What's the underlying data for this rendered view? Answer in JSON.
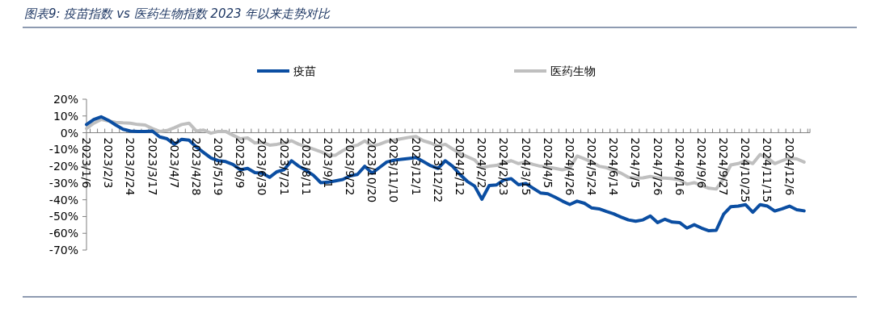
{
  "chart_data": {
    "type": "line",
    "title": "图表9: 疫苗指数 vs 医药生物指数 2023 年以来走势对比",
    "categories": [
      "2023/1/6",
      null,
      null,
      "2023/2/3",
      null,
      null,
      "2023/2/24",
      null,
      null,
      "2023/3/17",
      null,
      null,
      "2023/4/7",
      null,
      null,
      "2023/4/28",
      null,
      null,
      "2023/5/19",
      null,
      null,
      "2023/6/9",
      null,
      null,
      "2023/6/30",
      null,
      null,
      "2023/7/21",
      null,
      null,
      "2023/8/11",
      null,
      null,
      "2023/9/1",
      null,
      null,
      "2023/9/22",
      null,
      null,
      "2023/10/20",
      null,
      null,
      "2023/11/10",
      null,
      null,
      "2023/12/1",
      null,
      null,
      "2023/12/22",
      null,
      null,
      "2024/1/12",
      null,
      null,
      "2024/2/2",
      null,
      null,
      "2024/2/23",
      null,
      null,
      "2024/3/15",
      null,
      null,
      "2024/4/5",
      null,
      null,
      "2024/4/26",
      null,
      null,
      "2024/5/24",
      null,
      null,
      "2024/6/14",
      null,
      null,
      "2024/7/5",
      null,
      null,
      "2024/7/26",
      null,
      null,
      "2024/8/16",
      null,
      null,
      "2024/9/6",
      null,
      null,
      "2024/9/27",
      null,
      null,
      "2024/10/25",
      null,
      null,
      "2024/11/15",
      null,
      null,
      "2024/12/6",
      null,
      null
    ],
    "series": [
      {
        "name": "疫苗",
        "color": "#0b4ea2",
        "values": [
          4.9,
          7.9,
          9.5,
          7.4,
          4.6,
          2.1,
          1.0,
          0.8,
          0.8,
          1.0,
          -2.5,
          -3.6,
          -6.9,
          -3.9,
          -4.4,
          -8.5,
          -11.8,
          -15.1,
          -16.7,
          -17.2,
          -18.9,
          -22.1,
          -21.3,
          -23.8,
          -24.1,
          -26.6,
          -23.3,
          -22.0,
          -16.7,
          -20.0,
          -22.5,
          -25.4,
          -29.8,
          -29.5,
          -28.7,
          -27.9,
          -25.7,
          -24.9,
          -20.0,
          -24.1,
          -20.8,
          -17.5,
          -16.4,
          -15.9,
          -15.4,
          -14.8,
          -17.2,
          -19.7,
          -21.3,
          -16.7,
          -20.0,
          -24.9,
          -29.0,
          -31.8,
          -39.7,
          -31.5,
          -31.1,
          -28.2,
          -27.4,
          -31.0,
          -30.3,
          -33.1,
          -35.9,
          -36.4,
          -38.5,
          -40.8,
          -42.8,
          -40.8,
          -42.1,
          -44.9,
          -45.4,
          -47.0,
          -48.4,
          -50.3,
          -52.0,
          -52.8,
          -52.0,
          -49.7,
          -53.6,
          -51.6,
          -53.3,
          -53.6,
          -56.9,
          -54.9,
          -56.9,
          -58.5,
          -58.2,
          -48.7,
          -44.1,
          -43.8,
          -42.9,
          -47.4,
          -42.9,
          -43.8,
          -46.7,
          -45.4,
          -43.8,
          -45.9,
          -46.6
        ]
      },
      {
        "name": "医药生物",
        "color": "#bfbfbf",
        "values": [
          2.5,
          5.7,
          7.9,
          7.0,
          6.2,
          5.9,
          5.7,
          4.9,
          4.6,
          2.5,
          0.8,
          1.3,
          3.0,
          4.9,
          5.7,
          1.0,
          1.6,
          -0.3,
          0.8,
          0.8,
          -1.5,
          -3.6,
          -3.1,
          -6.1,
          -5.7,
          -7.4,
          -6.9,
          -6.1,
          -4.8,
          -6.9,
          -8.2,
          -9.8,
          -11.3,
          -13.4,
          -13.4,
          -10.7,
          -8.5,
          -7.4,
          -4.9,
          -8.0,
          -6.9,
          -5.2,
          -4.4,
          -3.6,
          -2.8,
          -2.3,
          -4.8,
          -6.1,
          -8.0,
          -6.9,
          -9.7,
          -12.3,
          -14.3,
          -16.2,
          -20.8,
          -20.0,
          -19.5,
          -17.9,
          -16.7,
          -18.4,
          -17.5,
          -18.9,
          -20.0,
          -20.5,
          -21.3,
          -22.1,
          -21.1,
          -13.9,
          -15.6,
          -17.5,
          -20.0,
          -20.8,
          -22.5,
          -24.1,
          -26.6,
          -27.0,
          -26.9,
          -26.1,
          -27.0,
          -27.0,
          -27.4,
          -28.2,
          -30.7,
          -29.8,
          -31.5,
          -33.1,
          -33.6,
          -27.4,
          -19.2,
          -18.4,
          -16.7,
          -18.4,
          -13.0,
          -15.1,
          -18.4,
          -16.7,
          -15.1,
          -15.6,
          -17.5
        ]
      }
    ],
    "ylim": [
      -70,
      20
    ],
    "yticks": [
      {
        "value": 20,
        "label": "20%"
      },
      {
        "value": 10,
        "label": "10%"
      },
      {
        "value": 0,
        "label": "0%"
      },
      {
        "value": -10,
        "label": "-10%"
      },
      {
        "value": -20,
        "label": "-20%"
      },
      {
        "value": -30,
        "label": "-30%"
      },
      {
        "value": -40,
        "label": "-40%"
      },
      {
        "value": -50,
        "label": "-50%"
      },
      {
        "value": -60,
        "label": "-60%"
      },
      {
        "value": -70,
        "label": "-70%"
      }
    ],
    "legend": "top"
  }
}
